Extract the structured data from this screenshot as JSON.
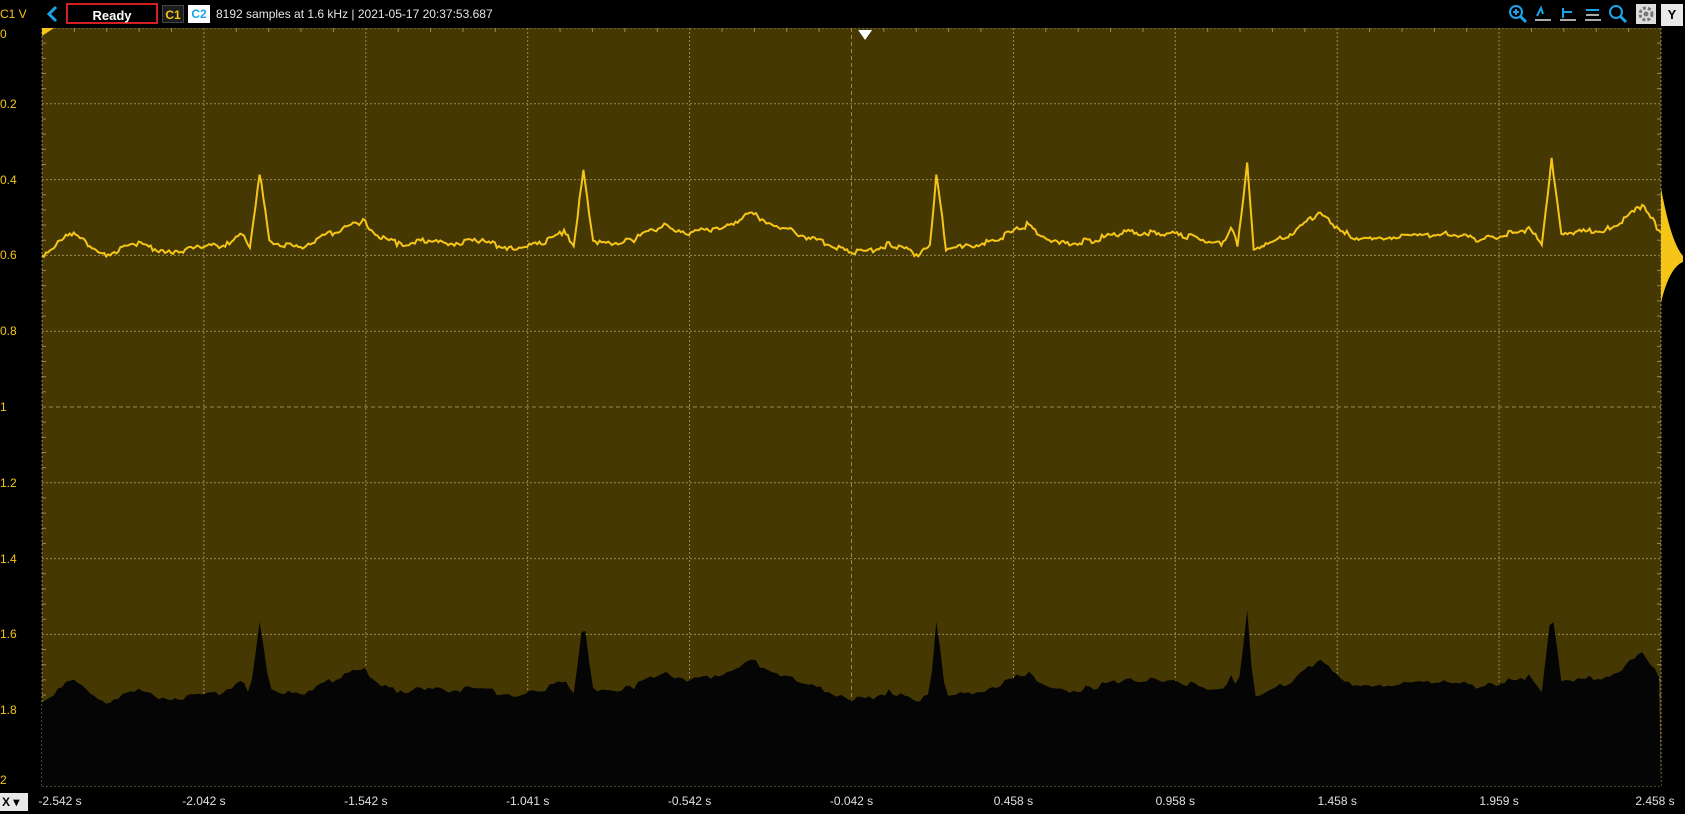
{
  "toolbar": {
    "channel_label": "C1 V",
    "status": "Ready",
    "c1": "C1",
    "c2": "C2",
    "info": "8192 samples at 1.6 kHz | 2021-05-17 20:37:53.687",
    "y_button": "Y",
    "icons": [
      "zoom-in-icon",
      "cursor-left-icon",
      "cursor-both-icon",
      "cursor-right-icon",
      "zoom-icon",
      "gear-icon"
    ]
  },
  "xaxis": {
    "button": "X",
    "ticks": [
      "-2.542 s",
      "-2.042 s",
      "-1.542 s",
      "-1.041 s",
      "-0.542 s",
      "-0.042 s",
      "0.458 s",
      "0.958 s",
      "1.458 s",
      "1.959 s",
      "2.458 s"
    ]
  },
  "yaxis": {
    "ticks": [
      "0",
      "0.2",
      "0.4",
      "0.6",
      "0.8",
      "1",
      "1.2",
      "1.4",
      "1.6",
      "1.8",
      "2"
    ]
  },
  "colors": {
    "trace": "#f5c518",
    "plot_bg": "#453803",
    "grid": "#9a8a50",
    "c2": "#1aa3e8",
    "status_border": "#d42020"
  },
  "chart_data": {
    "type": "line",
    "title": "",
    "xlabel": "",
    "ylabel": "C1 V",
    "xlim": [
      -2.542,
      2.458
    ],
    "ylim": [
      0,
      2
    ],
    "y_inverted": true,
    "grid": true,
    "series": [
      {
        "name": "C1",
        "x": [
          -2.542,
          -2.45,
          -2.35,
          -2.25,
          -2.15,
          -2.05,
          -1.97,
          -1.93,
          -1.9,
          -1.87,
          -1.84,
          -1.8,
          -1.75,
          -1.62,
          -1.55,
          -1.5,
          -1.44,
          -1.36,
          -1.3,
          -1.2,
          -1.1,
          -1.0,
          -0.93,
          -0.9,
          -0.87,
          -0.84,
          -0.8,
          -0.72,
          -0.62,
          -0.55,
          -0.47,
          -0.4,
          -0.35,
          -0.28,
          -0.15,
          -0.05,
          0.0,
          0.08,
          0.17,
          0.2,
          0.22,
          0.25,
          0.3,
          0.4,
          0.5,
          0.55,
          0.6,
          0.7,
          0.8,
          0.9,
          1.0,
          1.1,
          1.13,
          1.15,
          1.18,
          1.2,
          1.25,
          1.3,
          1.4,
          1.5,
          1.56,
          1.62,
          1.7,
          1.8,
          1.9,
          2.0,
          2.05,
          2.09,
          2.12,
          2.15,
          2.2,
          2.3,
          2.4,
          2.458
        ],
        "values": [
          0.6,
          0.54,
          0.6,
          0.57,
          0.59,
          0.58,
          0.57,
          0.54,
          0.58,
          0.38,
          0.56,
          0.57,
          0.58,
          0.53,
          0.51,
          0.55,
          0.57,
          0.56,
          0.57,
          0.56,
          0.58,
          0.57,
          0.54,
          0.57,
          0.38,
          0.56,
          0.57,
          0.56,
          0.52,
          0.54,
          0.53,
          0.51,
          0.49,
          0.52,
          0.56,
          0.59,
          0.59,
          0.57,
          0.6,
          0.57,
          0.39,
          0.58,
          0.58,
          0.56,
          0.52,
          0.55,
          0.57,
          0.56,
          0.54,
          0.54,
          0.55,
          0.57,
          0.53,
          0.57,
          0.36,
          0.58,
          0.57,
          0.55,
          0.49,
          0.55,
          0.56,
          0.55,
          0.55,
          0.54,
          0.56,
          0.54,
          0.53,
          0.57,
          0.35,
          0.54,
          0.54,
          0.53,
          0.47,
          0.54
        ]
      }
    ]
  }
}
